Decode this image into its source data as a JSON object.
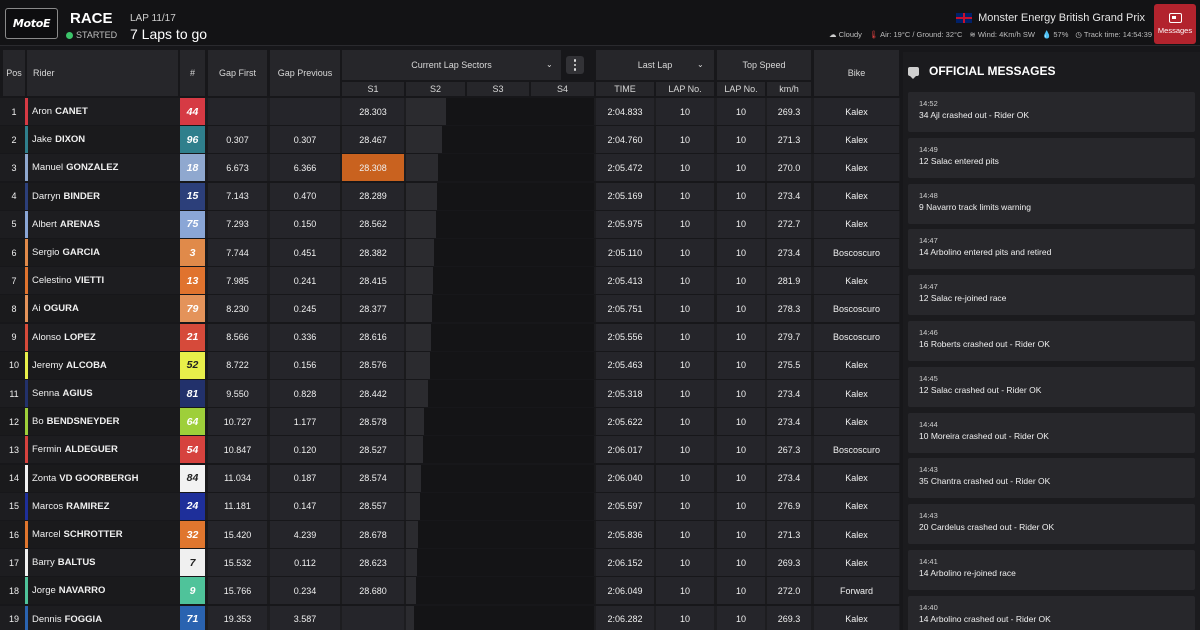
{
  "header": {
    "logo_text": "MotoE",
    "race_label": "RACE",
    "status": "STARTED",
    "lap": "LAP 11/17",
    "laps_to_go": "7 Laps to go",
    "event": "Monster Energy British Grand Prix",
    "weather": {
      "condition": "Cloudy",
      "temps": "Air: 19°C / Ground: 32°C",
      "wind": "Wind: 4Km/h SW",
      "humidity": "57%",
      "track_time_label": "Track time:",
      "track_time": "14:54:39"
    },
    "messages_button": "Messages"
  },
  "columns": {
    "pos": "Pos",
    "rider": "Rider",
    "num": "#",
    "gap_first": "Gap First",
    "gap_prev": "Gap Previous",
    "sectors": "Current Lap Sectors",
    "s1": "S1",
    "s2": "S2",
    "s3": "S3",
    "s4": "S4",
    "last_lap": "Last Lap",
    "time": "TIME",
    "lap_no": "LAP No.",
    "top_speed": "Top Speed",
    "ts_lap_no": "LAP No.",
    "kmh": "km/h",
    "bike": "Bike"
  },
  "colors": {
    "accent_red": "#b2232d",
    "best_sector": "#c9621f",
    "status_green": "#3cc46a"
  },
  "rows": [
    {
      "pos": "1",
      "first": "Aron",
      "last": "CANET",
      "num": "44",
      "color": "#d63a44",
      "gap_first": "",
      "gap_prev": "",
      "s1": "28.303",
      "time": "2:04.833",
      "lap": "10",
      "ts_lap": "10",
      "kmh": "269.3",
      "bike": "Kalex",
      "s2": 0.4
    },
    {
      "pos": "2",
      "first": "Jake",
      "last": "DIXON",
      "num": "96",
      "color": "#2f7f8c",
      "gap_first": "0.307",
      "gap_prev": "0.307",
      "s1": "28.467",
      "time": "2:04.760",
      "lap": "10",
      "ts_lap": "10",
      "kmh": "271.3",
      "bike": "Kalex",
      "s2": 0.36
    },
    {
      "pos": "3",
      "first": "Manuel",
      "last": "GONZALEZ",
      "num": "18",
      "color": "#8fa8cf",
      "gap_first": "6.673",
      "gap_prev": "6.366",
      "s1": "28.308",
      "time": "2:05.472",
      "lap": "10",
      "ts_lap": "10",
      "kmh": "270.0",
      "bike": "Kalex",
      "s2": 0.32,
      "best": true
    },
    {
      "pos": "4",
      "first": "Darryn",
      "last": "BINDER",
      "num": "15",
      "color": "#2c3f7a",
      "gap_first": "7.143",
      "gap_prev": "0.470",
      "s1": "28.289",
      "time": "2:05.169",
      "lap": "10",
      "ts_lap": "10",
      "kmh": "273.4",
      "bike": "Kalex",
      "s2": 0.31
    },
    {
      "pos": "5",
      "first": "Albert",
      "last": "ARENAS",
      "num": "75",
      "color": "#8aa6d6",
      "gap_first": "7.293",
      "gap_prev": "0.150",
      "s1": "28.562",
      "time": "2:05.975",
      "lap": "10",
      "ts_lap": "10",
      "kmh": "272.7",
      "bike": "Kalex",
      "s2": 0.3
    },
    {
      "pos": "6",
      "first": "Sergio",
      "last": "GARCIA",
      "num": "3",
      "color": "#e08a4a",
      "gap_first": "7.744",
      "gap_prev": "0.451",
      "s1": "28.382",
      "time": "2:05.110",
      "lap": "10",
      "ts_lap": "10",
      "kmh": "273.4",
      "bike": "Boscoscuro",
      "s2": 0.28
    },
    {
      "pos": "7",
      "first": "Celestino",
      "last": "VIETTI",
      "num": "13",
      "color": "#e0732e",
      "gap_first": "7.985",
      "gap_prev": "0.241",
      "s1": "28.415",
      "time": "2:05.413",
      "lap": "10",
      "ts_lap": "10",
      "kmh": "281.9",
      "bike": "Kalex",
      "s2": 0.27
    },
    {
      "pos": "8",
      "first": "Ai",
      "last": "OGURA",
      "num": "79",
      "color": "#e4935a",
      "gap_first": "8.230",
      "gap_prev": "0.245",
      "s1": "28.377",
      "time": "2:05.751",
      "lap": "10",
      "ts_lap": "10",
      "kmh": "278.3",
      "bike": "Boscoscuro",
      "s2": 0.26
    },
    {
      "pos": "9",
      "first": "Alonso",
      "last": "LOPEZ",
      "num": "21",
      "color": "#d64a3a",
      "gap_first": "8.566",
      "gap_prev": "0.336",
      "s1": "28.616",
      "time": "2:05.556",
      "lap": "10",
      "ts_lap": "10",
      "kmh": "279.7",
      "bike": "Boscoscuro",
      "s2": 0.25
    },
    {
      "pos": "10",
      "first": "Jeremy",
      "last": "ALCOBA",
      "num": "52",
      "color": "#e8ef4a",
      "gap_first": "8.722",
      "gap_prev": "0.156",
      "s1": "28.576",
      "time": "2:05.463",
      "lap": "10",
      "ts_lap": "10",
      "kmh": "275.5",
      "bike": "Kalex",
      "s2": 0.24
    },
    {
      "pos": "11",
      "first": "Senna",
      "last": "AGIUS",
      "num": "81",
      "color": "#22316b",
      "gap_first": "9.550",
      "gap_prev": "0.828",
      "s1": "28.442",
      "time": "2:05.318",
      "lap": "10",
      "ts_lap": "10",
      "kmh": "273.4",
      "bike": "Kalex",
      "s2": 0.22
    },
    {
      "pos": "12",
      "first": "Bo",
      "last": "BENDSNEYDER",
      "num": "64",
      "color": "#9ecf3a",
      "gap_first": "10.727",
      "gap_prev": "1.177",
      "s1": "28.578",
      "time": "2:05.622",
      "lap": "10",
      "ts_lap": "10",
      "kmh": "273.4",
      "bike": "Kalex",
      "s2": 0.18
    },
    {
      "pos": "13",
      "first": "Fermin",
      "last": "ALDEGUER",
      "num": "54",
      "color": "#d6423e",
      "gap_first": "10.847",
      "gap_prev": "0.120",
      "s1": "28.527",
      "time": "2:06.017",
      "lap": "10",
      "ts_lap": "10",
      "kmh": "267.3",
      "bike": "Boscoscuro",
      "s2": 0.17
    },
    {
      "pos": "14",
      "first": "Zonta",
      "last": "VD GOORBERGH",
      "num": "84",
      "color": "#f2f2f2",
      "gap_first": "11.034",
      "gap_prev": "0.187",
      "s1": "28.574",
      "time": "2:06.040",
      "lap": "10",
      "ts_lap": "10",
      "kmh": "273.4",
      "bike": "Kalex",
      "s2": 0.15
    },
    {
      "pos": "15",
      "first": "Marcos",
      "last": "RAMIREZ",
      "num": "24",
      "color": "#1e2f9a",
      "gap_first": "11.181",
      "gap_prev": "0.147",
      "s1": "28.557",
      "time": "2:05.597",
      "lap": "10",
      "ts_lap": "10",
      "kmh": "276.9",
      "bike": "Kalex",
      "s2": 0.14
    },
    {
      "pos": "16",
      "first": "Marcel",
      "last": "SCHROTTER",
      "num": "32",
      "color": "#e0762e",
      "gap_first": "15.420",
      "gap_prev": "4.239",
      "s1": "28.678",
      "time": "2:05.836",
      "lap": "10",
      "ts_lap": "10",
      "kmh": "271.3",
      "bike": "Kalex",
      "s2": 0.12
    },
    {
      "pos": "17",
      "first": "Barry",
      "last": "BALTUS",
      "num": "7",
      "color": "#f0f0f0",
      "gap_first": "15.532",
      "gap_prev": "0.112",
      "s1": "28.623",
      "time": "2:06.152",
      "lap": "10",
      "ts_lap": "10",
      "kmh": "269.3",
      "bike": "Kalex",
      "s2": 0.11
    },
    {
      "pos": "18",
      "first": "Jorge",
      "last": "NAVARRO",
      "num": "9",
      "color": "#4fc39a",
      "gap_first": "15.766",
      "gap_prev": "0.234",
      "s1": "28.680",
      "time": "2:06.049",
      "lap": "10",
      "ts_lap": "10",
      "kmh": "272.0",
      "bike": "Forward",
      "s2": 0.1
    },
    {
      "pos": "19",
      "first": "Dennis",
      "last": "FOGGIA",
      "num": "71",
      "color": "#2a63b0",
      "gap_first": "19.353",
      "gap_prev": "3.587",
      "s1": "",
      "time": "2:06.282",
      "lap": "10",
      "ts_lap": "10",
      "kmh": "269.3",
      "bike": "Kalex",
      "s2": 0.08
    }
  ],
  "messages_panel": {
    "title": "OFFICIAL MESSAGES",
    "items": [
      {
        "time": "14:52",
        "text": "34 Ajl crashed out - Rider OK"
      },
      {
        "time": "14:49",
        "text": "12 Salac entered pits"
      },
      {
        "time": "14:48",
        "text": "9 Navarro track limits warning"
      },
      {
        "time": "14:47",
        "text": "14 Arbolino entered pits and retired"
      },
      {
        "time": "14:47",
        "text": "12 Salac re-joined race"
      },
      {
        "time": "14:46",
        "text": "16 Roberts crashed out - Rider OK"
      },
      {
        "time": "14:45",
        "text": "12 Salac crashed out - Rider OK"
      },
      {
        "time": "14:44",
        "text": "10 Moreira crashed out - Rider OK"
      },
      {
        "time": "14:43",
        "text": "35 Chantra crashed out - Rider OK"
      },
      {
        "time": "14:43",
        "text": "20 Cardelus crashed out - Rider OK"
      },
      {
        "time": "14:41",
        "text": "14 Arbolino re-joined race"
      },
      {
        "time": "14:40",
        "text": "14 Arbolino crashed out - Rider OK"
      }
    ]
  }
}
